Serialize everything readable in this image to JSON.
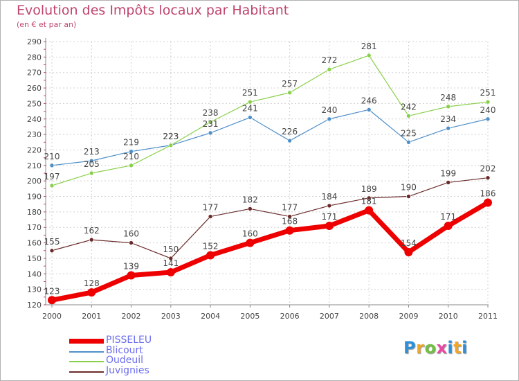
{
  "header": {
    "title": "Evolution des Impôts locaux par Habitant",
    "subtitle": "(en € et par an)"
  },
  "logo": {
    "text": "Proxiti"
  },
  "colors": {
    "PISSELEU": "#ee0000",
    "Blicourt": "#4f8fc8",
    "Oudeuil": "#88d04a",
    "Juvignies": "#6b2a2a",
    "grid": "#d0d0d0",
    "axis_text": "#444444"
  },
  "chart_data": {
    "type": "line",
    "title": "Evolution des Impôts locaux par Habitant",
    "subtitle": "(en € et par an)",
    "xlabel": "",
    "ylabel": "",
    "x": [
      "2000",
      "2001",
      "2002",
      "2003",
      "2004",
      "2005",
      "2006",
      "2007",
      "2008",
      "2009",
      "2010",
      "2011"
    ],
    "ylim": [
      120,
      290
    ],
    "yticks": [
      120,
      130,
      140,
      150,
      160,
      170,
      180,
      190,
      200,
      210,
      220,
      230,
      240,
      250,
      260,
      270,
      280,
      290
    ],
    "grid": true,
    "legend_position": "bottom-left",
    "series": [
      {
        "name": "Juvignies",
        "values": [
          155,
          162,
          160,
          150,
          177,
          182,
          177,
          184,
          189,
          190,
          199,
          202
        ]
      },
      {
        "name": "Blicourt",
        "values": [
          210,
          213,
          219,
          223,
          231,
          241,
          226,
          240,
          246,
          225,
          234,
          240
        ]
      },
      {
        "name": "Oudeuil",
        "values": [
          197,
          205,
          210,
          223,
          238,
          251,
          257,
          272,
          281,
          242,
          248,
          251
        ]
      },
      {
        "name": "PISSELEU",
        "values": [
          123,
          128,
          139,
          141,
          152,
          160,
          168,
          171,
          181,
          154,
          171,
          186
        ]
      }
    ],
    "legend": [
      "PISSELEU",
      "Blicourt",
      "Oudeuil",
      "Juvignies"
    ]
  }
}
